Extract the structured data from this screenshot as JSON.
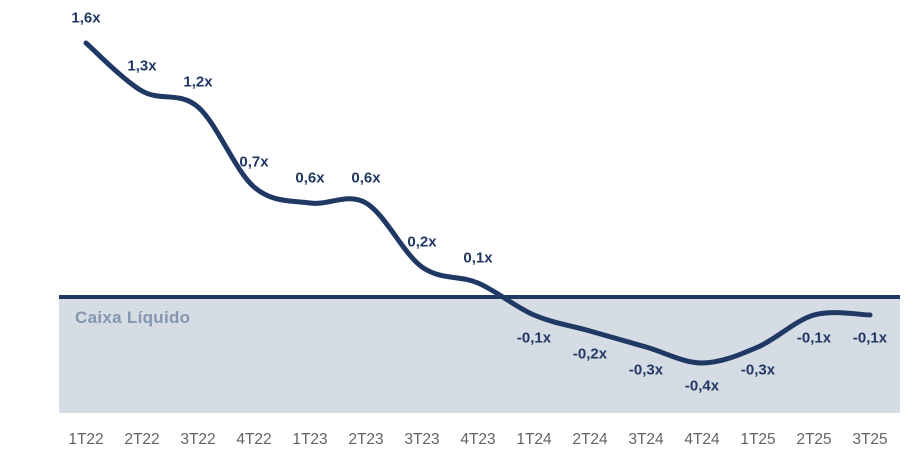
{
  "chart_data": {
    "type": "line",
    "categories": [
      "1T22",
      "2T22",
      "3T22",
      "4T22",
      "1T23",
      "2T23",
      "3T23",
      "4T23",
      "1T24",
      "2T24",
      "3T24",
      "4T24",
      "1T25",
      "2T25",
      "3T25"
    ],
    "values": [
      1.6,
      1.3,
      1.2,
      0.7,
      0.6,
      0.6,
      0.2,
      0.1,
      -0.1,
      -0.2,
      -0.3,
      -0.4,
      -0.3,
      -0.1,
      -0.1
    ],
    "point_labels": [
      "1,6x",
      "1,3x",
      "1,2x",
      "0,7x",
      "0,6x",
      "0,6x",
      "0,2x",
      "0,1x",
      "-0,1x",
      "-0,2x",
      "-0,3x",
      "-0,4x",
      "-0,3x",
      "-0,1x",
      "-0,1x"
    ],
    "title": "",
    "xlabel": "",
    "ylabel": "",
    "ylim": [
      -0.7,
      1.85
    ],
    "grid": false,
    "legend": false,
    "smooth": true,
    "zero_line": true,
    "cash_region": {
      "label": "Caixa Líquido",
      "fill": "#D6DCE4",
      "label_color": "#8496B0"
    },
    "colors": {
      "line": "#1F3864",
      "point_label": "#1F3864",
      "axis_label": "#636363",
      "zero_line": "#1F3864"
    }
  }
}
